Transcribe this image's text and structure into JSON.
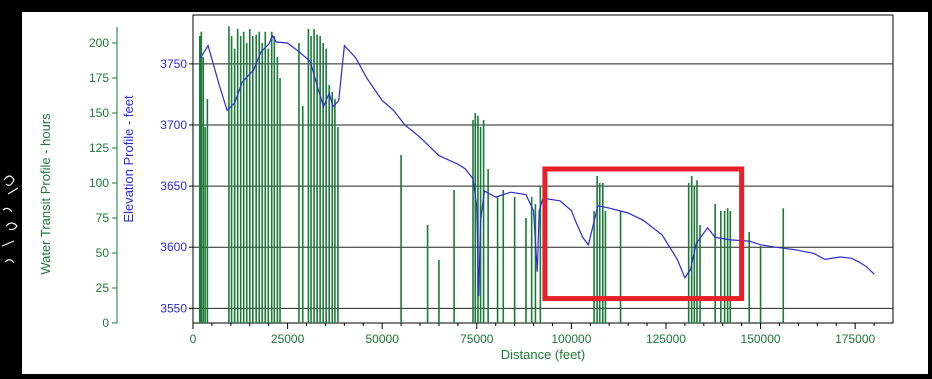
{
  "chart_data": {
    "type": "line",
    "xlabel": "Distance (feet)",
    "ylabel_left": "Water Transit Profile - hours",
    "ylabel_right": "Elevation Profile - feet",
    "xlim": [
      0,
      185000
    ],
    "x_ticks": [
      0,
      25000,
      50000,
      75000,
      100000,
      125000,
      150000,
      175000
    ],
    "x_tick_labels": [
      "0",
      "25000",
      "50000",
      "75000",
      "100000",
      "125000",
      "150000",
      "175000"
    ],
    "y_left_ticks": [
      0,
      25,
      50,
      75,
      100,
      125,
      150,
      175,
      200
    ],
    "y_left_tick_labels": [
      "0",
      "25",
      "50",
      "75",
      "100",
      "125",
      "150",
      "175",
      "200"
    ],
    "y_left_lim": [
      0,
      220
    ],
    "y_right_ticks": [
      3550,
      3600,
      3650,
      3700,
      3750
    ],
    "y_right_tick_labels": [
      "3550",
      "3600",
      "3650",
      "3700",
      "3750"
    ],
    "y_right_lim": [
      3538,
      3790
    ],
    "grid": true,
    "highlight_box": {
      "x_range": [
        93000,
        145000
      ],
      "y_range": [
        3558,
        3664
      ],
      "color": "#e8202a"
    },
    "series": [
      {
        "name": "Elevation Profile - feet",
        "axis": "right",
        "color": "#2b2bd6",
        "x": [
          2000,
          4000,
          7000,
          9000,
          11000,
          13000,
          16000,
          18000,
          20000,
          21000,
          22000,
          25000,
          28000,
          31000,
          33000,
          34500,
          36000,
          37000,
          38500,
          40000,
          43000,
          46000,
          50000,
          53000,
          56000,
          60000,
          65000,
          70000,
          72000,
          74000,
          75000,
          75500,
          76000,
          77000,
          80000,
          84000,
          88000,
          90000,
          91000,
          91500,
          92500,
          97000,
          100000,
          101000,
          103000,
          104500,
          107000,
          110000,
          115000,
          119000,
          124000,
          128000,
          130000,
          131500,
          133000,
          136000,
          138000,
          142000,
          147000,
          150000,
          154000,
          159000,
          164000,
          167000,
          171000,
          174000,
          176000,
          178000,
          180000
        ],
        "y": [
          3755,
          3765,
          3732,
          3712,
          3718,
          3735,
          3745,
          3760,
          3766,
          3773,
          3768,
          3767,
          3760,
          3752,
          3730,
          3715,
          3726,
          3715,
          3720,
          3765,
          3755,
          3738,
          3720,
          3712,
          3700,
          3690,
          3675,
          3668,
          3664,
          3656,
          3633,
          3560,
          3622,
          3646,
          3641,
          3645,
          3643,
          3630,
          3580,
          3630,
          3640,
          3638,
          3630,
          3622,
          3608,
          3602,
          3634,
          3632,
          3628,
          3622,
          3610,
          3590,
          3575,
          3582,
          3603,
          3616,
          3608,
          3606,
          3605,
          3602,
          3600,
          3598,
          3595,
          3590,
          3592,
          3591,
          3588,
          3584,
          3578
        ]
      },
      {
        "name": "Water Transit Profile - hours",
        "axis": "left",
        "color": "#1a7a36",
        "bars": [
          [
            1800,
            205
          ],
          [
            2200,
            208
          ],
          [
            2700,
            190
          ],
          [
            3200,
            140
          ],
          [
            3800,
            160
          ],
          [
            9500,
            212
          ],
          [
            10200,
            205
          ],
          [
            11000,
            196
          ],
          [
            11800,
            210
          ],
          [
            12600,
            205
          ],
          [
            13400,
            208
          ],
          [
            14200,
            200
          ],
          [
            15000,
            210
          ],
          [
            15800,
            205
          ],
          [
            16700,
            206
          ],
          [
            17500,
            208
          ],
          [
            18300,
            200
          ],
          [
            19100,
            208
          ],
          [
            19900,
            196
          ],
          [
            20800,
            208
          ],
          [
            21500,
            205
          ],
          [
            22300,
            190
          ],
          [
            23000,
            175
          ],
          [
            28000,
            200
          ],
          [
            29000,
            155
          ],
          [
            30500,
            210
          ],
          [
            31200,
            205
          ],
          [
            32000,
            210
          ],
          [
            32800,
            206
          ],
          [
            33600,
            205
          ],
          [
            34400,
            200
          ],
          [
            35200,
            196
          ],
          [
            36000,
            170
          ],
          [
            36800,
            165
          ],
          [
            37500,
            160
          ],
          [
            38300,
            140
          ],
          [
            55000,
            120
          ],
          [
            62000,
            70
          ],
          [
            65000,
            45
          ],
          [
            69000,
            95
          ],
          [
            74000,
            145
          ],
          [
            74600,
            150
          ],
          [
            75300,
            148
          ],
          [
            76000,
            140
          ],
          [
            76800,
            145
          ],
          [
            78000,
            110
          ],
          [
            80500,
            90
          ],
          [
            82000,
            95
          ],
          [
            85000,
            90
          ],
          [
            88000,
            75
          ],
          [
            89500,
            90
          ],
          [
            90500,
            85
          ],
          [
            91800,
            98
          ],
          [
            106000,
            80
          ],
          [
            106800,
            105
          ],
          [
            107500,
            100
          ],
          [
            108300,
            100
          ],
          [
            109000,
            80
          ],
          [
            113000,
            80
          ],
          [
            131000,
            100
          ],
          [
            131800,
            105
          ],
          [
            132500,
            98
          ],
          [
            133200,
            102
          ],
          [
            134000,
            70
          ],
          [
            138000,
            85
          ],
          [
            139500,
            80
          ],
          [
            140500,
            80
          ],
          [
            141300,
            82
          ],
          [
            142000,
            80
          ],
          [
            147000,
            65
          ],
          [
            150000,
            55
          ],
          [
            156000,
            82
          ]
        ]
      }
    ]
  }
}
